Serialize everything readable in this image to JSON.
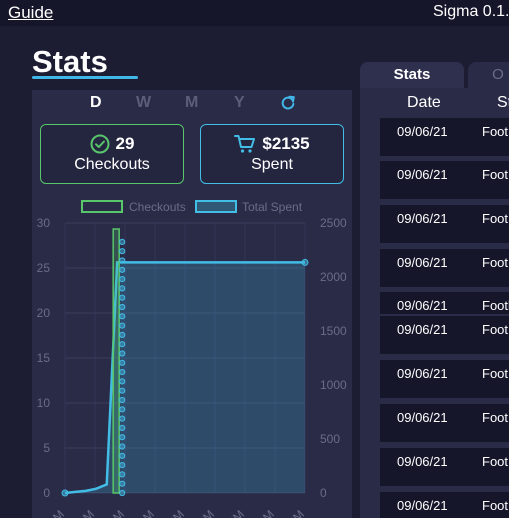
{
  "topbar": {
    "guide_label": "Guide",
    "version": "Sigma 0.1."
  },
  "page": {
    "title": "Stats"
  },
  "periods": [
    "D",
    "W",
    "M",
    "Y"
  ],
  "active_period": "D",
  "cards": {
    "checkouts_value": "29",
    "checkouts_label": "Checkouts",
    "spent_value": "$2135",
    "spent_label": "Spent"
  },
  "colors": {
    "checkouts": "#58c66a",
    "spent": "#42bde6",
    "accent": "#41b7e8"
  },
  "icons": {
    "checkouts": "check-circle-icon",
    "spent": "cart-icon",
    "refresh": "refresh-icon"
  },
  "chart_data": {
    "type": "bar",
    "legend": [
      "Checkouts",
      "Total Spent"
    ],
    "legend_position": "top",
    "grid": true,
    "y_left": {
      "ticks": [
        "30",
        "25",
        "20",
        "15",
        "10",
        "5",
        "0"
      ],
      "ylim": [
        0,
        30
      ]
    },
    "y_right": {
      "ticks": [
        "2500",
        "2000",
        "1500",
        "1000",
        "500",
        "0"
      ],
      "ylim": [
        0,
        2500
      ]
    },
    "x_tick_labels": [
      "AM",
      "AM",
      "AM",
      "AM",
      "PM",
      "PM",
      "PM",
      "PM",
      "PM"
    ],
    "series": [
      {
        "name": "Checkouts",
        "kind": "bar",
        "values": [
          0,
          0,
          0,
          0,
          0,
          29,
          0,
          0,
          0,
          0,
          0,
          0,
          0,
          0,
          0,
          0,
          0,
          0,
          0,
          0,
          0,
          0,
          0,
          0
        ]
      },
      {
        "name": "Total Spent",
        "kind": "area",
        "values": [
          0,
          10,
          20,
          40,
          80,
          2135,
          2135,
          2135,
          2135,
          2135,
          2135,
          2135,
          2135,
          2135,
          2135,
          2135,
          2135,
          2135,
          2135,
          2135,
          2135,
          2135,
          2135,
          2135
        ]
      }
    ]
  },
  "table": {
    "tabs": [
      "Stats",
      "O"
    ],
    "headers": [
      "Date",
      "St"
    ],
    "rows": [
      {
        "date": "09/06/21",
        "site": "Foot"
      },
      {
        "date": "09/06/21",
        "site": "Foot"
      },
      {
        "date": "09/06/21",
        "site": "Foot"
      },
      {
        "date": "09/06/21",
        "site": "Foot"
      },
      {
        "date": "09/06/21",
        "site": "Footlo"
      },
      {
        "date": "09/06/21",
        "site": "Foot"
      },
      {
        "date": "09/06/21",
        "site": "Foot"
      },
      {
        "date": "09/06/21",
        "site": "Foot"
      },
      {
        "date": "09/06/21",
        "site": "Foot"
      },
      {
        "date": "09/06/21",
        "site": "Foot"
      }
    ]
  }
}
